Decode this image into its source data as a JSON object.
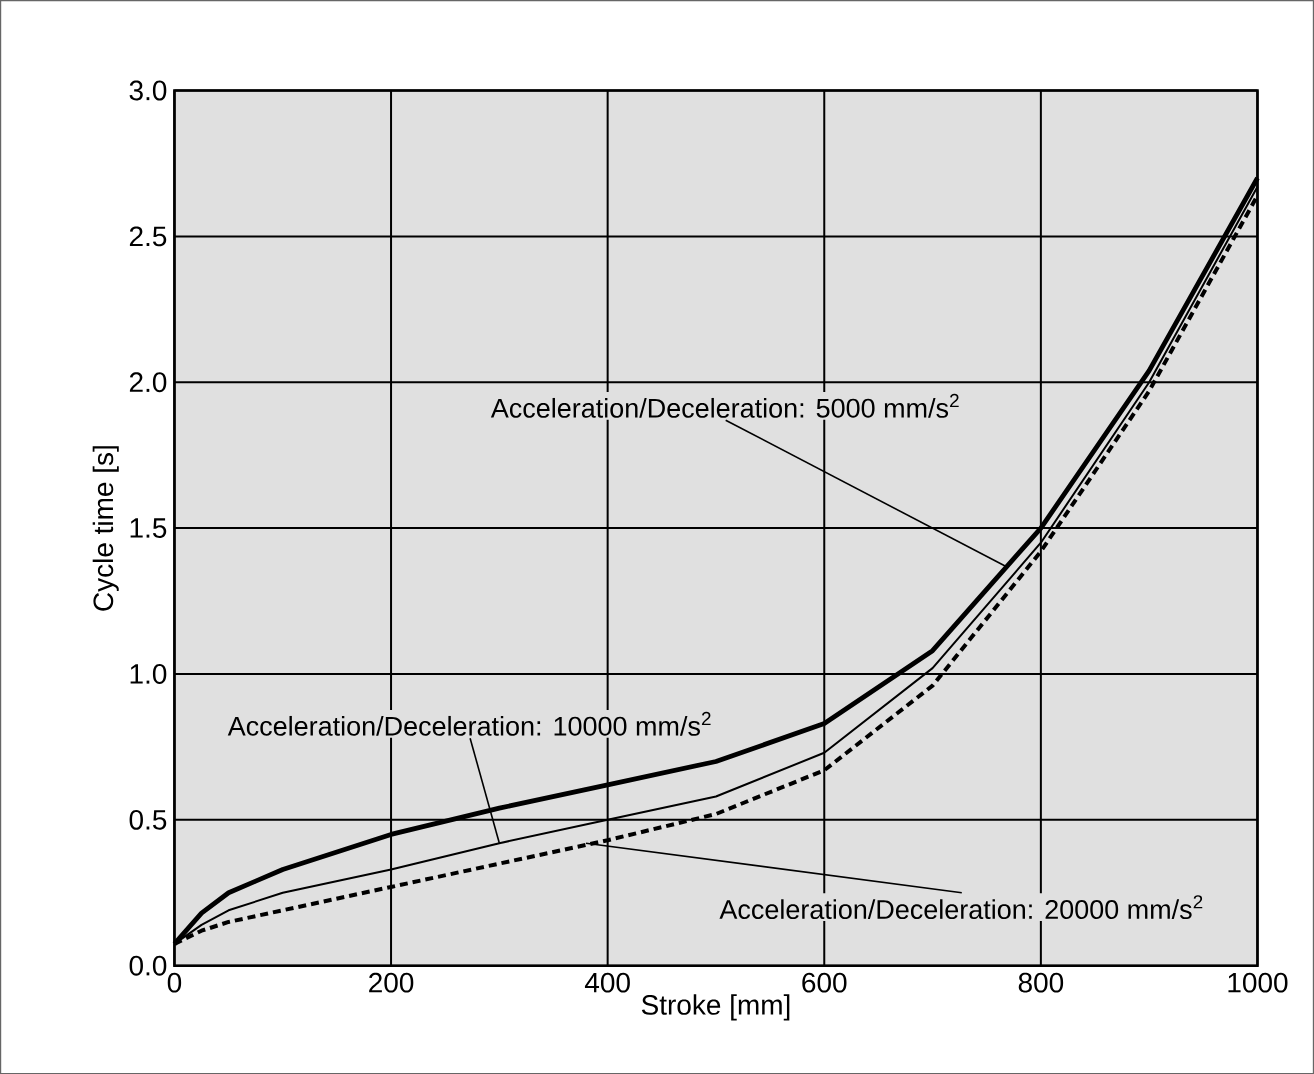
{
  "chart_data": {
    "type": "line",
    "xlabel": "Stroke [mm]",
    "ylabel": "Cycle time [s]",
    "x": [
      0,
      25,
      50,
      75,
      100,
      200,
      300,
      400,
      500,
      600,
      700,
      800,
      900,
      1000
    ],
    "series": [
      {
        "color": "#000000",
        "line_style": "solid",
        "values": [
          0.075,
          0.18,
          0.25,
          0.29,
          0.33,
          0.45,
          0.54,
          0.62,
          0.7,
          0.83,
          1.08,
          1.5,
          2.04,
          2.7
        ]
      },
      {
        "color": "#000000",
        "line_style": "solid",
        "values": [
          0.075,
          0.14,
          0.19,
          0.22,
          0.25,
          0.33,
          0.42,
          0.5,
          0.58,
          0.73,
          1.02,
          1.45,
          2.0,
          2.67
        ]
      },
      {
        "color": "#000000",
        "line_style": "dashed",
        "values": [
          0.075,
          0.12,
          0.15,
          0.17,
          0.19,
          0.27,
          0.35,
          0.43,
          0.52,
          0.67,
          0.96,
          1.42,
          1.97,
          2.64
        ]
      }
    ],
    "xlim": [
      0,
      1000
    ],
    "ylim": [
      0,
      3.0
    ],
    "xticks": [
      0,
      200,
      400,
      600,
      800,
      1000
    ],
    "yticks": [
      {
        "value": 0,
        "label": "0.0"
      },
      {
        "value": 0.5,
        "label": "0.5"
      },
      {
        "value": 1,
        "label": "1.0"
      },
      {
        "value": 1.5,
        "label": "1.5"
      },
      {
        "value": 2,
        "label": "2.0"
      },
      {
        "value": 2.5,
        "label": "2.5"
      },
      {
        "value": 3,
        "label": "3.0"
      }
    ],
    "grid": true,
    "marker": "none",
    "annotations": [
      {
        "text": "Acceleration/Deceleration: 5000 mm/s$^{2}$",
        "x": 767,
        "y": 1.37
      },
      {
        "text": "Acceleration/Deceleration: 10000 mm/s$^{2}$",
        "x": 300,
        "y": 0.42
      },
      {
        "text": "Acceleration/Deceleration: 20000 mm/s$^{2}$",
        "x": 380,
        "y": 0.42
      }
    ]
  }
}
